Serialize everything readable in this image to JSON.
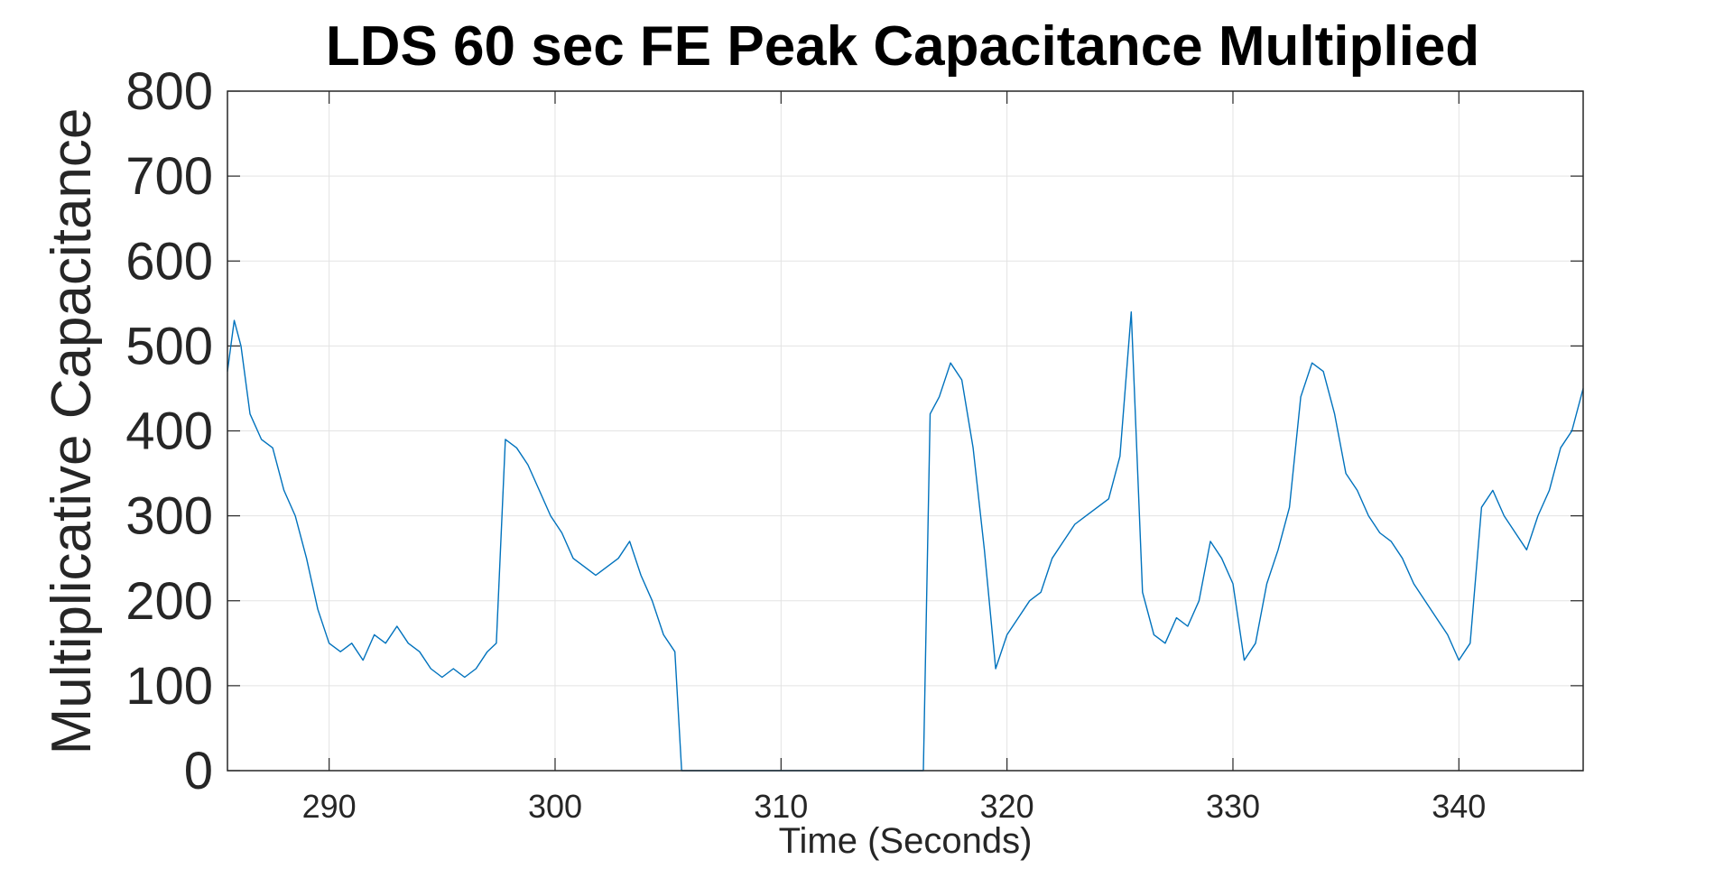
{
  "chart_data": {
    "type": "line",
    "title": "LDS 60 sec FE Peak Capacitance Multiplied",
    "xlabel": "Time (Seconds)",
    "ylabel": "Multiplicative Capacitance",
    "xlim": [
      285.5,
      345.5
    ],
    "ylim": [
      0,
      800
    ],
    "xticks": [
      290,
      300,
      310,
      320,
      330,
      340
    ],
    "yticks": [
      0,
      100,
      200,
      300,
      400,
      500,
      600,
      700,
      800
    ],
    "grid": true,
    "series": [
      {
        "color": "#0072BD",
        "x": [
          285.5,
          285.8,
          286.1,
          286.5,
          287.0,
          287.5,
          288.0,
          288.5,
          289.0,
          289.5,
          290.0,
          290.5,
          291.0,
          291.5,
          292.0,
          292.5,
          293.0,
          293.5,
          294.0,
          294.5,
          295.0,
          295.5,
          296.0,
          296.5,
          297.0,
          297.4,
          297.8,
          298.3,
          298.8,
          299.3,
          299.8,
          300.3,
          300.8,
          301.3,
          301.8,
          302.3,
          302.8,
          303.3,
          303.8,
          304.3,
          304.8,
          305.3,
          305.6,
          305.8,
          306.2,
          310.0,
          316.0,
          316.3,
          316.6,
          317.0,
          317.5,
          318.0,
          318.5,
          319.0,
          319.5,
          320.0,
          320.5,
          321.0,
          321.5,
          322.0,
          322.5,
          323.0,
          323.5,
          324.0,
          324.5,
          325.0,
          325.5,
          326.0,
          326.5,
          327.0,
          327.5,
          328.0,
          328.5,
          329.0,
          329.5,
          330.0,
          330.5,
          331.0,
          331.5,
          332.0,
          332.5,
          333.0,
          333.5,
          334.0,
          334.5,
          335.0,
          335.5,
          336.0,
          336.5,
          337.0,
          337.5,
          338.0,
          338.5,
          339.0,
          339.5,
          340.0,
          340.5,
          341.0,
          341.5,
          342.0,
          342.5,
          343.0,
          343.5,
          344.0,
          344.5,
          345.0,
          345.5
        ],
        "values": [
          470,
          530,
          500,
          420,
          390,
          380,
          330,
          300,
          250,
          190,
          150,
          140,
          150,
          130,
          160,
          150,
          170,
          150,
          140,
          120,
          110,
          120,
          110,
          120,
          140,
          150,
          390,
          380,
          360,
          330,
          300,
          280,
          250,
          240,
          230,
          240,
          250,
          270,
          230,
          200,
          160,
          140,
          0,
          0,
          0,
          0,
          0,
          0,
          420,
          440,
          480,
          460,
          380,
          260,
          120,
          160,
          180,
          200,
          210,
          250,
          270,
          290,
          300,
          310,
          320,
          370,
          540,
          210,
          160,
          150,
          180,
          170,
          200,
          270,
          250,
          220,
          130,
          150,
          220,
          260,
          310,
          440,
          480,
          470,
          420,
          350,
          330,
          300,
          280,
          270,
          250,
          220,
          200,
          180,
          160,
          130,
          150,
          310,
          330,
          300,
          280,
          260,
          300,
          330,
          380,
          400,
          450
        ]
      }
    ]
  }
}
